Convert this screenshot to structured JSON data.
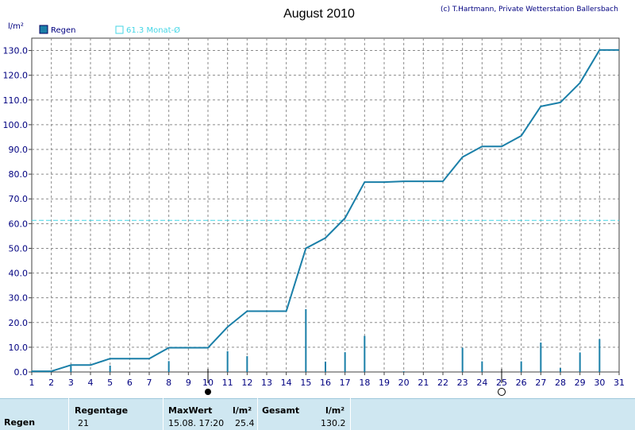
{
  "title": "August 2010",
  "copyright": "(c) T.Hartmann, Private Wetterstation Ballersbach",
  "yaxis_unit": "l/m²",
  "legend": {
    "rain_label": "Regen",
    "monthly_label": "61.3 Monat-Ø"
  },
  "colors": {
    "cumulative": "#1a7fa8",
    "daily": "#1a7fa8",
    "average": "#44d6e6",
    "grid": "#808080",
    "footer_bg": "#cfe7f1",
    "text": "#000080"
  },
  "chart_data": {
    "type": "line",
    "title": "August 2010",
    "ylabel": "l/m²",
    "xlim": [
      1,
      31
    ],
    "ylim": [
      0,
      135
    ],
    "x_ticks": [
      1,
      2,
      3,
      4,
      5,
      6,
      7,
      8,
      9,
      10,
      11,
      12,
      13,
      14,
      15,
      16,
      17,
      18,
      19,
      20,
      21,
      22,
      23,
      24,
      25,
      26,
      27,
      28,
      29,
      30,
      31
    ],
    "y_ticks": [
      "0.0",
      "10.0",
      "20.0",
      "30.0",
      "40.0",
      "50.0",
      "60.0",
      "70.0",
      "80.0",
      "90.0",
      "100.0",
      "110.0",
      "120.0",
      "130.0"
    ],
    "grid": true,
    "series": [
      {
        "name": "Regen",
        "kind": "cumulative-line",
        "x": [
          1,
          2,
          3,
          4,
          5,
          6,
          7,
          8,
          9,
          10,
          11,
          12,
          13,
          14,
          15,
          16,
          17,
          18,
          19,
          20,
          21,
          22,
          23,
          24,
          25,
          26,
          27,
          28,
          29,
          30,
          31
        ],
        "values": [
          0.3,
          0.3,
          2.8,
          2.8,
          5.4,
          5.4,
          5.4,
          9.8,
          9.8,
          9.8,
          18.2,
          24.6,
          24.6,
          24.6,
          50.0,
          54.2,
          62.2,
          76.8,
          76.8,
          77.1,
          77.1,
          77.1,
          86.9,
          91.2,
          91.2,
          95.5,
          107.4,
          109.0,
          116.9,
          130.2,
          130.2
        ]
      },
      {
        "name": "Regen",
        "kind": "daily-bars",
        "x": [
          1,
          3,
          5,
          8,
          11,
          12,
          15,
          16,
          17,
          18,
          20,
          23,
          24,
          26,
          27,
          28,
          29,
          30
        ],
        "values": [
          0.3,
          2.5,
          2.6,
          4.4,
          8.4,
          6.4,
          25.4,
          4.2,
          8.0,
          14.6,
          0.3,
          9.8,
          4.3,
          4.3,
          11.9,
          1.6,
          7.9,
          13.3
        ]
      }
    ],
    "reference_line": {
      "label": "61.3 Monat-Ø",
      "value": 61.3
    },
    "moon_phases": [
      {
        "day": 10,
        "phase": "new"
      },
      {
        "day": 25,
        "phase": "full"
      }
    ]
  },
  "footer": {
    "row_label": "Regen",
    "regentage_label": "Regentage",
    "regentage_value": "21",
    "maxwert_label": "MaxWert",
    "maxwert_unit": "l/m²",
    "maxwert_date": "15.08. 17:20",
    "maxwert_value": "25.4",
    "gesamt_label": "Gesamt",
    "gesamt_unit": "l/m²",
    "gesamt_value": "130.2"
  }
}
